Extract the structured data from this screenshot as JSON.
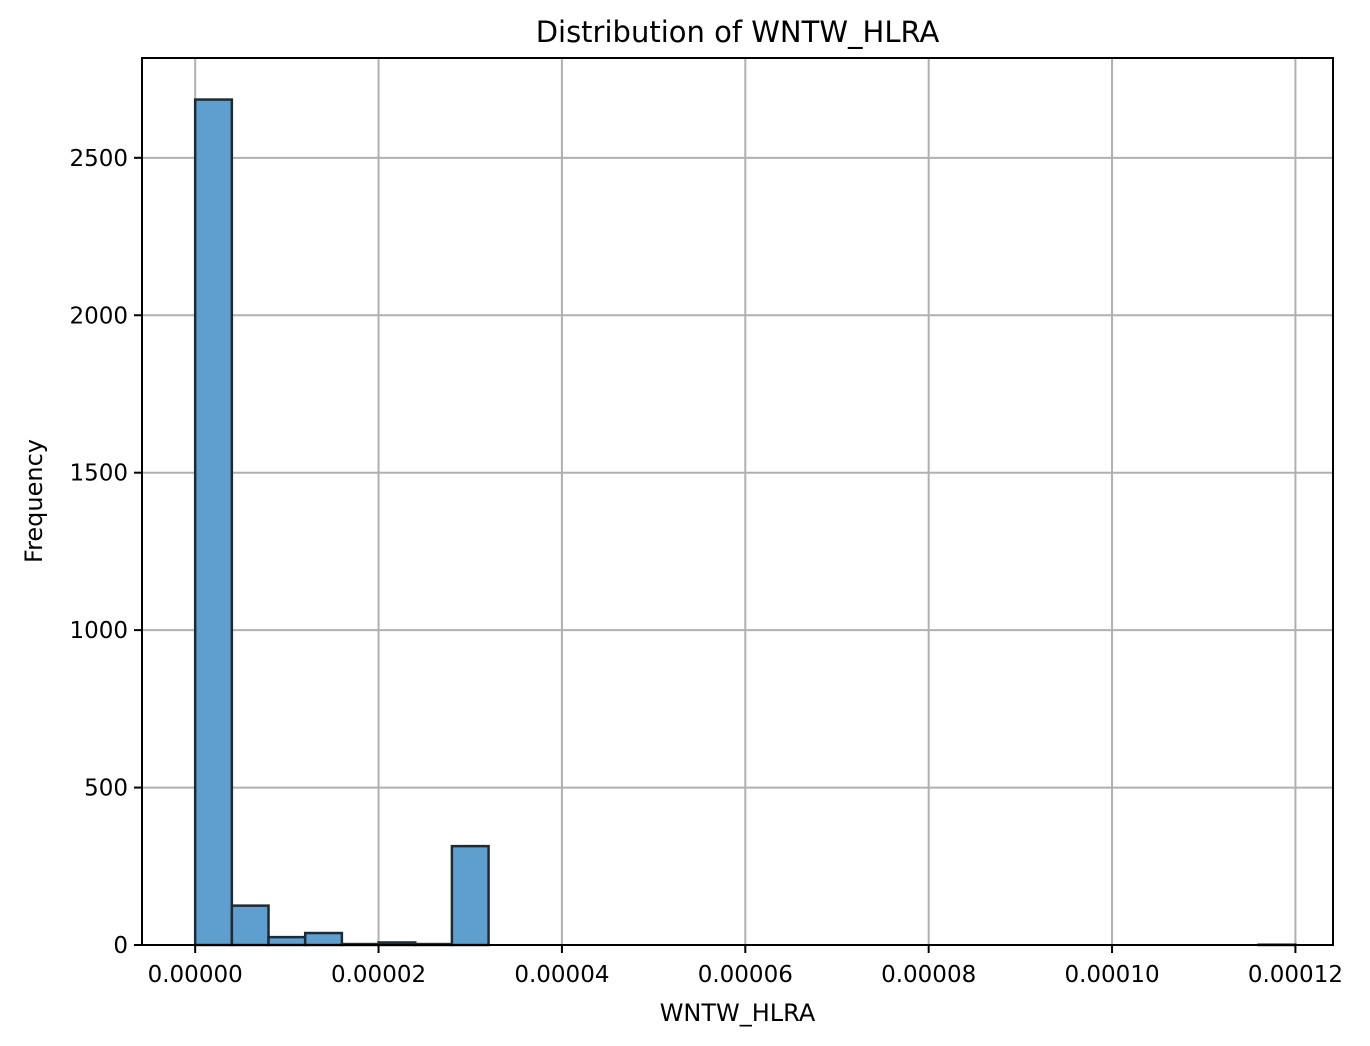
{
  "chart_data": {
    "type": "bar",
    "title": "Distribution of WNTW_HLRA",
    "xlabel": "WNTW_HLRA",
    "ylabel": "Frequency",
    "xlim": [
      -5.8e-06,
      0.0001241
    ],
    "ylim": [
      0,
      2817
    ],
    "xticks": [
      0.0,
      2e-05,
      4e-05,
      6e-05,
      8e-05,
      0.0001,
      0.00012
    ],
    "xtick_labels": [
      "0.00000",
      "0.00002",
      "0.00004",
      "0.00006",
      "0.00008",
      "0.00010",
      "0.00012"
    ],
    "yticks": [
      0,
      500,
      1000,
      1500,
      2000,
      2500
    ],
    "ytick_labels": [
      "0",
      "500",
      "1000",
      "1500",
      "2000",
      "2500"
    ],
    "bin_edges": [
      0.0,
      4e-06,
      8e-06,
      1.2e-05,
      1.6e-05,
      2e-05,
      2.4e-05,
      2.8e-05,
      3.2e-05,
      3.6e-05,
      4e-05,
      4.4e-05,
      4.8e-05,
      5.2e-05,
      5.6e-05,
      6e-05,
      6.4e-05,
      6.8e-05,
      7.2e-05,
      7.6e-05,
      8e-05,
      8.4e-05,
      8.8e-05,
      9.2e-05,
      9.6e-05,
      0.0001,
      0.000104,
      0.000108,
      0.000112,
      0.000116,
      0.00012
    ],
    "values": [
      2685,
      125,
      25,
      38,
      3,
      8,
      3,
      314,
      0,
      0,
      0,
      0,
      0,
      0,
      0,
      0,
      0,
      0,
      0,
      0,
      0,
      0,
      0,
      0,
      0,
      0,
      0,
      0,
      0,
      1
    ],
    "grid": true,
    "bar_color": "#5f9fcf",
    "edge_color": "#1f2a33"
  }
}
